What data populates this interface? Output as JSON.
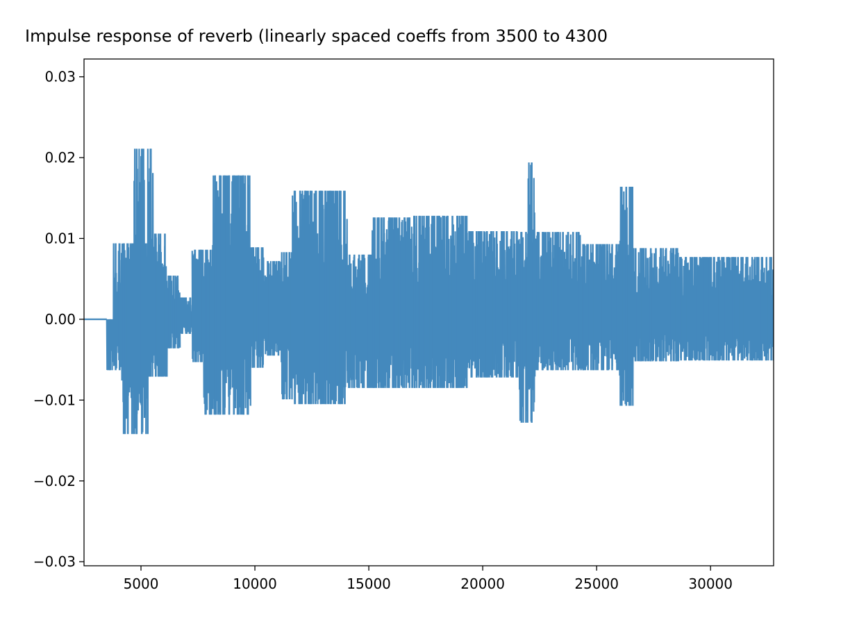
{
  "chart_data": {
    "type": "line",
    "title": "Impulse response of reverb (linearly spaced coeffs from 3500 to 4300",
    "xlabel": "",
    "ylabel": "",
    "xlim": [
      2500,
      32768
    ],
    "ylim": [
      -0.0305,
      0.0322
    ],
    "xticks": [
      5000,
      10000,
      15000,
      20000,
      25000,
      30000
    ],
    "xtick_labels": [
      "5000",
      "10000",
      "15000",
      "20000",
      "25000",
      "30000"
    ],
    "yticks": [
      -0.03,
      -0.02,
      -0.01,
      0.0,
      0.01,
      0.02,
      0.03
    ],
    "ytick_labels": [
      "−0.03",
      "−0.02",
      "−0.01",
      "0.00",
      "0.01",
      "0.02",
      "0.03"
    ],
    "grid": false,
    "series": [
      {
        "color": "#4489bd",
        "baseline": {
          "x_start": 2500,
          "x_end": 3500,
          "value": 0.0
        },
        "envelope": [
          {
            "x0": 3500,
            "x1": 3800,
            "hi": 0.0,
            "lo": -0.0063
          },
          {
            "x0": 3800,
            "x1": 4150,
            "hi": 0.0094,
            "lo": -0.0063
          },
          {
            "x0": 4150,
            "x1": 4700,
            "hi": 0.0094,
            "lo": -0.0142
          },
          {
            "x0": 4700,
            "x1": 5150,
            "hi": 0.0211,
            "lo": -0.0142
          },
          {
            "x0": 5150,
            "x1": 5300,
            "hi": 0.0094,
            "lo": -0.0142
          },
          {
            "x0": 5300,
            "x1": 5550,
            "hi": 0.0211,
            "lo": -0.0071
          },
          {
            "x0": 5550,
            "x1": 6150,
            "hi": 0.0106,
            "lo": -0.0071
          },
          {
            "x0": 6150,
            "x1": 6700,
            "hi": 0.0054,
            "lo": -0.0036
          },
          {
            "x0": 6700,
            "x1": 7250,
            "hi": 0.0027,
            "lo": -0.0018
          },
          {
            "x0": 7250,
            "x1": 7750,
            "hi": 0.0086,
            "lo": -0.0053
          },
          {
            "x0": 7750,
            "x1": 8150,
            "hi": 0.0086,
            "lo": -0.0118
          },
          {
            "x0": 8150,
            "x1": 9800,
            "hi": 0.0178,
            "lo": -0.0118
          },
          {
            "x0": 9800,
            "x1": 10450,
            "hi": 0.0089,
            "lo": -0.006
          },
          {
            "x0": 10450,
            "x1": 11150,
            "hi": 0.0072,
            "lo": -0.0045
          },
          {
            "x0": 11150,
            "x1": 11650,
            "hi": 0.0083,
            "lo": -0.0099
          },
          {
            "x0": 11650,
            "x1": 13000,
            "hi": 0.0159,
            "lo": -0.0105
          },
          {
            "x0": 13000,
            "x1": 14050,
            "hi": 0.0159,
            "lo": -0.0105
          },
          {
            "x0": 14050,
            "x1": 15100,
            "hi": 0.008,
            "lo": -0.0085
          },
          {
            "x0": 15100,
            "x1": 16900,
            "hi": 0.0126,
            "lo": -0.0085
          },
          {
            "x0": 16900,
            "x1": 19400,
            "hi": 0.0128,
            "lo": -0.0085
          },
          {
            "x0": 19400,
            "x1": 21600,
            "hi": 0.0109,
            "lo": -0.0072
          },
          {
            "x0": 21600,
            "x1": 22000,
            "hi": 0.0108,
            "lo": -0.0128
          },
          {
            "x0": 22000,
            "x1": 22300,
            "hi": 0.0194,
            "lo": -0.0128
          },
          {
            "x0": 22300,
            "x1": 24300,
            "hi": 0.0108,
            "lo": -0.0063
          },
          {
            "x0": 24300,
            "x1": 26000,
            "hi": 0.0093,
            "lo": -0.0063
          },
          {
            "x0": 26000,
            "x1": 26600,
            "hi": 0.0164,
            "lo": -0.0107
          },
          {
            "x0": 26600,
            "x1": 28600,
            "hi": 0.0088,
            "lo": -0.0052
          },
          {
            "x0": 28600,
            "x1": 32768,
            "hi": 0.0077,
            "lo": -0.0051
          }
        ]
      }
    ]
  }
}
